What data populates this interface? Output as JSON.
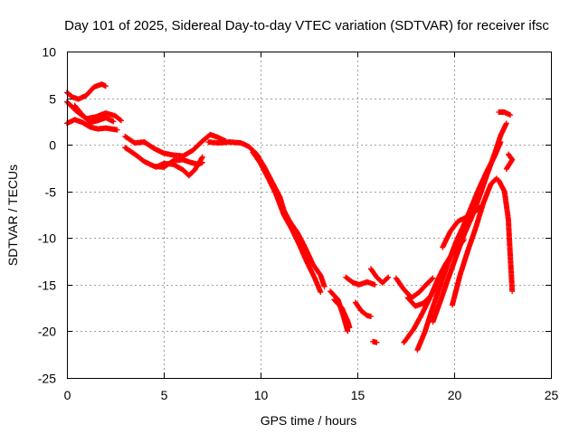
{
  "chart_data": {
    "type": "scatter",
    "title": "Day 101 of 2025, Sidereal Day-to-day VTEC variation (SDTVAR) for receiver ifsc",
    "xlabel": "GPS time / hours",
    "ylabel": "SDTVAR / TECUs",
    "xlim": [
      0,
      25
    ],
    "ylim": [
      -25,
      10
    ],
    "xticks": [
      0,
      5,
      10,
      15,
      20,
      25
    ],
    "yticks": [
      -25,
      -20,
      -15,
      -10,
      -5,
      0,
      5,
      10
    ],
    "grid": true,
    "marker": "+",
    "color": "#ff0000",
    "series": [
      {
        "values": [
          [
            0.0,
            5.6
          ],
          [
            0.3,
            5.1
          ],
          [
            0.6,
            4.9
          ],
          [
            1.0,
            5.3
          ],
          [
            1.4,
            6.2
          ],
          [
            1.8,
            6.5
          ],
          [
            2.0,
            6.3
          ]
        ]
      },
      {
        "values": [
          [
            0.0,
            2.3
          ],
          [
            0.4,
            2.7
          ],
          [
            0.8,
            2.4
          ],
          [
            1.2,
            1.9
          ],
          [
            1.6,
            1.7
          ],
          [
            2.0,
            1.8
          ],
          [
            2.6,
            1.6
          ]
        ]
      },
      {
        "values": [
          [
            0.0,
            4.6
          ],
          [
            0.5,
            3.6
          ],
          [
            1.0,
            2.8
          ],
          [
            1.5,
            3.0
          ],
          [
            2.0,
            3.4
          ],
          [
            2.5,
            3.1
          ],
          [
            2.8,
            2.6
          ]
        ]
      },
      {
        "values": [
          [
            0.4,
            4.2
          ],
          [
            0.8,
            3.2
          ],
          [
            1.2,
            2.4
          ],
          [
            1.6,
            2.6
          ],
          [
            2.0,
            2.9
          ],
          [
            2.4,
            2.5
          ]
        ]
      },
      {
        "values": [
          [
            3.0,
            0.9
          ],
          [
            3.5,
            0.2
          ],
          [
            4.0,
            0.3
          ],
          [
            4.5,
            -0.4
          ],
          [
            5.0,
            -0.9
          ],
          [
            5.5,
            -1.1
          ],
          [
            6.0,
            -1.2
          ],
          [
            6.5,
            -0.6
          ],
          [
            7.0,
            0.4
          ],
          [
            7.4,
            1.1
          ],
          [
            7.8,
            0.8
          ],
          [
            8.2,
            0.4
          ]
        ]
      },
      {
        "values": [
          [
            3.0,
            -0.3
          ],
          [
            3.5,
            -1.0
          ],
          [
            4.0,
            -1.8
          ],
          [
            4.5,
            -2.3
          ],
          [
            5.0,
            -2.4
          ],
          [
            5.5,
            -1.7
          ],
          [
            6.0,
            -1.6
          ],
          [
            6.4,
            -1.9
          ],
          [
            6.8,
            -2.1
          ],
          [
            7.0,
            -1.9
          ]
        ]
      },
      {
        "values": [
          [
            4.6,
            -2.4
          ],
          [
            5.0,
            -2.0
          ],
          [
            5.5,
            -2.1
          ],
          [
            6.0,
            -2.7
          ],
          [
            6.3,
            -3.3
          ],
          [
            6.6,
            -2.7
          ],
          [
            7.0,
            -1.3
          ]
        ]
      },
      {
        "values": [
          [
            7.3,
            0.3
          ],
          [
            7.8,
            0.2
          ],
          [
            8.4,
            0.3
          ],
          [
            9.0,
            0.2
          ],
          [
            9.4,
            -0.2
          ],
          [
            9.8,
            -1.0
          ],
          [
            10.2,
            -2.4
          ],
          [
            10.6,
            -4.0
          ],
          [
            11.0,
            -5.6
          ],
          [
            11.2,
            -7.0
          ],
          [
            11.5,
            -8.2
          ],
          [
            11.9,
            -9.4
          ],
          [
            12.3,
            -11.0
          ],
          [
            12.7,
            -12.8
          ],
          [
            13.1,
            -14.0
          ],
          [
            13.3,
            -15.2
          ]
        ]
      },
      {
        "values": [
          [
            9.6,
            -0.8
          ],
          [
            10.0,
            -2.0
          ],
          [
            10.4,
            -3.6
          ],
          [
            10.8,
            -5.3
          ],
          [
            11.2,
            -7.5
          ],
          [
            11.6,
            -9.0
          ],
          [
            12.0,
            -10.7
          ],
          [
            12.4,
            -12.6
          ],
          [
            12.8,
            -14.3
          ],
          [
            13.1,
            -15.8
          ]
        ]
      },
      {
        "values": [
          [
            13.6,
            -15.7
          ],
          [
            14.0,
            -16.6
          ],
          [
            14.3,
            -18.5
          ],
          [
            14.5,
            -20.0
          ]
        ]
      },
      {
        "values": [
          [
            13.8,
            -16.6
          ],
          [
            14.2,
            -17.5
          ],
          [
            14.5,
            -18.9
          ],
          [
            14.6,
            -19.6
          ]
        ]
      },
      {
        "values": [
          [
            14.4,
            -14.2
          ],
          [
            14.8,
            -14.8
          ],
          [
            15.1,
            -15.0
          ],
          [
            15.5,
            -14.7
          ],
          [
            15.9,
            -15.0
          ]
        ]
      },
      {
        "values": [
          [
            14.9,
            -16.9
          ],
          [
            15.2,
            -17.8
          ],
          [
            15.5,
            -18.3
          ],
          [
            15.7,
            -18.4
          ]
        ]
      },
      {
        "values": [
          [
            15.7,
            -13.3
          ],
          [
            16.0,
            -14.2
          ],
          [
            16.3,
            -14.8
          ],
          [
            16.6,
            -14.2
          ]
        ]
      },
      {
        "values": [
          [
            15.8,
            -21.1
          ],
          [
            16.0,
            -21.2
          ]
        ]
      },
      {
        "values": [
          [
            17.0,
            -14.3
          ],
          [
            17.4,
            -15.5
          ],
          [
            17.8,
            -16.4
          ],
          [
            18.2,
            -15.8
          ],
          [
            18.6,
            -14.9
          ],
          [
            18.9,
            -14.3
          ]
        ]
      },
      {
        "values": [
          [
            17.6,
            -16.4
          ],
          [
            18.0,
            -17.3
          ],
          [
            18.4,
            -17.0
          ],
          [
            18.8,
            -16.2
          ],
          [
            19.1,
            -14.7
          ],
          [
            19.4,
            -13.4
          ]
        ]
      },
      {
        "values": [
          [
            17.4,
            -21.2
          ],
          [
            17.9,
            -19.8
          ],
          [
            18.3,
            -18.3
          ],
          [
            18.7,
            -16.6
          ],
          [
            19.1,
            -14.8
          ],
          [
            19.5,
            -13.0
          ],
          [
            19.8,
            -12.0
          ],
          [
            20.1,
            -11.3
          ],
          [
            20.5,
            -10.2
          ]
        ]
      },
      {
        "values": [
          [
            18.1,
            -22.0
          ],
          [
            18.5,
            -20.0
          ],
          [
            18.9,
            -17.4
          ],
          [
            19.3,
            -15.0
          ],
          [
            19.7,
            -12.6
          ],
          [
            20.1,
            -10.4
          ],
          [
            20.5,
            -8.6
          ],
          [
            20.9,
            -6.6
          ],
          [
            21.3,
            -4.6
          ],
          [
            21.7,
            -2.8
          ],
          [
            22.1,
            -1.2
          ],
          [
            22.4,
            0.3
          ]
        ]
      },
      {
        "values": [
          [
            18.9,
            -19.0
          ],
          [
            19.3,
            -16.7
          ],
          [
            19.7,
            -14.3
          ],
          [
            20.1,
            -12.0
          ],
          [
            20.5,
            -9.7
          ],
          [
            20.9,
            -7.8
          ],
          [
            21.3,
            -5.6
          ],
          [
            21.7,
            -3.2
          ],
          [
            22.1,
            -0.9
          ],
          [
            22.4,
            1.0
          ],
          [
            22.7,
            2.3
          ]
        ]
      },
      {
        "values": [
          [
            19.4,
            -11.0
          ],
          [
            19.8,
            -9.3
          ],
          [
            20.2,
            -8.2
          ],
          [
            20.6,
            -7.8
          ],
          [
            21.0,
            -7.3
          ],
          [
            21.4,
            -6.6
          ]
        ]
      },
      {
        "values": [
          [
            19.9,
            -17.2
          ],
          [
            20.3,
            -14.0
          ],
          [
            20.7,
            -11.4
          ],
          [
            21.1,
            -9.0
          ],
          [
            21.5,
            -6.3
          ],
          [
            21.9,
            -4.2
          ],
          [
            22.2,
            -3.6
          ]
        ]
      },
      {
        "values": [
          [
            22.3,
            -3.8
          ],
          [
            22.6,
            -5.0
          ],
          [
            22.8,
            -8.0
          ],
          [
            22.9,
            -12.0
          ],
          [
            23.0,
            -15.7
          ]
        ]
      },
      {
        "values": [
          [
            22.3,
            3.5
          ],
          [
            22.6,
            3.5
          ],
          [
            22.9,
            3.2
          ]
        ]
      },
      {
        "values": [
          [
            22.8,
            -1.0
          ],
          [
            23.0,
            -1.6
          ],
          [
            22.7,
            -2.6
          ]
        ]
      }
    ]
  }
}
